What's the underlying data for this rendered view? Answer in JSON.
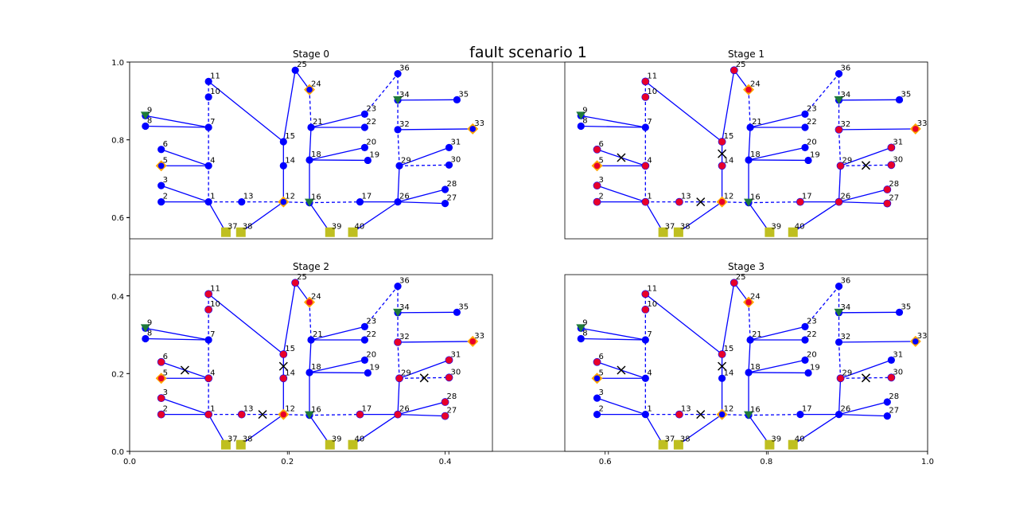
{
  "figure": {
    "title": "fault scenario 1",
    "outer_axis": {
      "type": "axes",
      "xlim": [
        0.0,
        1.0
      ],
      "ylim": [
        0.0,
        1.0
      ],
      "xticks": [
        "0.0",
        "0.2",
        "0.4",
        "0.6",
        "0.8",
        "1.0"
      ],
      "yticks": [
        "0.0",
        "0.2",
        "0.4",
        "0.6",
        "0.8",
        "1.0"
      ]
    }
  },
  "colors": {
    "bus_normal": "#0000ff",
    "bus_faulted": "#e8002a",
    "line": "#0000ff",
    "switch_open": "#0000ff",
    "generator": "#ffa500",
    "substation": "#1f7a3a",
    "load_square": "#bfbf20",
    "fault_marker": "#000000"
  },
  "chart_data": {
    "type": "network-graph",
    "nodes": [
      {
        "id": 1,
        "label": "1",
        "x": 0.1,
        "y": 0.64,
        "kind": "bus"
      },
      {
        "id": 2,
        "label": "2",
        "x": 0.04,
        "y": 0.64,
        "kind": "bus"
      },
      {
        "id": 3,
        "label": "3",
        "x": 0.04,
        "y": 0.682,
        "kind": "bus"
      },
      {
        "id": 4,
        "label": "4",
        "x": 0.1,
        "y": 0.733,
        "kind": "bus"
      },
      {
        "id": 5,
        "label": "5",
        "x": 0.04,
        "y": 0.733,
        "kind": "generator"
      },
      {
        "id": 6,
        "label": "6",
        "x": 0.04,
        "y": 0.775,
        "kind": "bus"
      },
      {
        "id": 7,
        "label": "7",
        "x": 0.1,
        "y": 0.832,
        "kind": "bus"
      },
      {
        "id": 8,
        "label": "8",
        "x": 0.02,
        "y": 0.835,
        "kind": "bus"
      },
      {
        "id": 9,
        "label": "9",
        "x": 0.02,
        "y": 0.862,
        "kind": "substation"
      },
      {
        "id": 10,
        "label": "10",
        "x": 0.1,
        "y": 0.91,
        "kind": "bus"
      },
      {
        "id": 11,
        "label": "11",
        "x": 0.1,
        "y": 0.95,
        "kind": "bus"
      },
      {
        "id": 12,
        "label": "12",
        "x": 0.195,
        "y": 0.64,
        "kind": "generator"
      },
      {
        "id": 13,
        "label": "13",
        "x": 0.142,
        "y": 0.64,
        "kind": "bus"
      },
      {
        "id": 14,
        "label": "14",
        "x": 0.195,
        "y": 0.733,
        "kind": "bus"
      },
      {
        "id": 15,
        "label": "15",
        "x": 0.195,
        "y": 0.795,
        "kind": "bus"
      },
      {
        "id": 16,
        "label": "16",
        "x": 0.228,
        "y": 0.638,
        "kind": "substation"
      },
      {
        "id": 17,
        "label": "17",
        "x": 0.292,
        "y": 0.64,
        "kind": "bus"
      },
      {
        "id": 18,
        "label": "18",
        "x": 0.228,
        "y": 0.748,
        "kind": "bus"
      },
      {
        "id": 19,
        "label": "19",
        "x": 0.302,
        "y": 0.747,
        "kind": "bus"
      },
      {
        "id": 20,
        "label": "20",
        "x": 0.298,
        "y": 0.78,
        "kind": "bus"
      },
      {
        "id": 21,
        "label": "21",
        "x": 0.23,
        "y": 0.832,
        "kind": "bus"
      },
      {
        "id": 22,
        "label": "22",
        "x": 0.298,
        "y": 0.832,
        "kind": "bus"
      },
      {
        "id": 23,
        "label": "23",
        "x": 0.298,
        "y": 0.866,
        "kind": "bus"
      },
      {
        "id": 24,
        "label": "24",
        "x": 0.228,
        "y": 0.929,
        "kind": "generator"
      },
      {
        "id": 25,
        "label": "25",
        "x": 0.21,
        "y": 0.979,
        "kind": "bus"
      },
      {
        "id": 26,
        "label": "26",
        "x": 0.34,
        "y": 0.64,
        "kind": "bus"
      },
      {
        "id": 27,
        "label": "27",
        "x": 0.4,
        "y": 0.636,
        "kind": "bus"
      },
      {
        "id": 28,
        "label": "28",
        "x": 0.4,
        "y": 0.672,
        "kind": "bus"
      },
      {
        "id": 29,
        "label": "29",
        "x": 0.342,
        "y": 0.733,
        "kind": "bus"
      },
      {
        "id": 30,
        "label": "30",
        "x": 0.405,
        "y": 0.735,
        "kind": "bus"
      },
      {
        "id": 31,
        "label": "31",
        "x": 0.405,
        "y": 0.78,
        "kind": "bus"
      },
      {
        "id": 32,
        "label": "32",
        "x": 0.34,
        "y": 0.826,
        "kind": "bus"
      },
      {
        "id": 33,
        "label": "33",
        "x": 0.435,
        "y": 0.828,
        "kind": "generator"
      },
      {
        "id": 34,
        "label": "34",
        "x": 0.34,
        "y": 0.902,
        "kind": "substation"
      },
      {
        "id": 35,
        "label": "35",
        "x": 0.415,
        "y": 0.903,
        "kind": "bus"
      },
      {
        "id": 36,
        "label": "36",
        "x": 0.34,
        "y": 0.97,
        "kind": "bus"
      },
      {
        "id": 37,
        "label": "37",
        "x": 0.122,
        "y": 0.562,
        "kind": "load"
      },
      {
        "id": 38,
        "label": "38",
        "x": 0.141,
        "y": 0.562,
        "kind": "load"
      },
      {
        "id": 39,
        "label": "39",
        "x": 0.254,
        "y": 0.562,
        "kind": "load"
      },
      {
        "id": 40,
        "label": "40",
        "x": 0.283,
        "y": 0.562,
        "kind": "load"
      }
    ],
    "lines": [
      {
        "from": 2,
        "to": 1,
        "style": "solid"
      },
      {
        "from": 3,
        "to": 1,
        "style": "solid"
      },
      {
        "from": 1,
        "to": 4,
        "style": "dashed"
      },
      {
        "from": 5,
        "to": 4,
        "style": "solid"
      },
      {
        "from": 6,
        "to": 4,
        "style": "solid"
      },
      {
        "from": 4,
        "to": 7,
        "style": "dashed"
      },
      {
        "from": 8,
        "to": 7,
        "style": "solid"
      },
      {
        "from": 9,
        "to": 7,
        "style": "solid"
      },
      {
        "from": 7,
        "to": 10,
        "style": "dashed"
      },
      {
        "from": 10,
        "to": 11,
        "style": "dashed"
      },
      {
        "from": 11,
        "to": 15,
        "style": "solid"
      },
      {
        "from": 1,
        "to": 13,
        "style": "dashed"
      },
      {
        "from": 13,
        "to": 12,
        "style": "dashed"
      },
      {
        "from": 12,
        "to": 14,
        "style": "solid"
      },
      {
        "from": 14,
        "to": 15,
        "style": "solid"
      },
      {
        "from": 15,
        "to": 25,
        "style": "solid"
      },
      {
        "from": 25,
        "to": 24,
        "style": "solid"
      },
      {
        "from": 24,
        "to": 21,
        "style": "dashed"
      },
      {
        "from": 12,
        "to": 16,
        "style": "dashed"
      },
      {
        "from": 16,
        "to": 17,
        "style": "dashed"
      },
      {
        "from": 17,
        "to": 26,
        "style": "solid"
      },
      {
        "from": 16,
        "to": 18,
        "style": "solid"
      },
      {
        "from": 18,
        "to": 21,
        "style": "solid"
      },
      {
        "from": 18,
        "to": 19,
        "style": "solid"
      },
      {
        "from": 18,
        "to": 20,
        "style": "solid"
      },
      {
        "from": 21,
        "to": 22,
        "style": "solid"
      },
      {
        "from": 21,
        "to": 23,
        "style": "solid"
      },
      {
        "from": 23,
        "to": 36,
        "style": "dashed"
      },
      {
        "from": 26,
        "to": 27,
        "style": "solid"
      },
      {
        "from": 26,
        "to": 28,
        "style": "solid"
      },
      {
        "from": 26,
        "to": 29,
        "style": "solid"
      },
      {
        "from": 29,
        "to": 30,
        "style": "dashed"
      },
      {
        "from": 29,
        "to": 31,
        "style": "solid"
      },
      {
        "from": 29,
        "to": 32,
        "style": "dashed"
      },
      {
        "from": 32,
        "to": 33,
        "style": "solid"
      },
      {
        "from": 32,
        "to": 34,
        "style": "dashed"
      },
      {
        "from": 34,
        "to": 35,
        "style": "solid"
      },
      {
        "from": 34,
        "to": 36,
        "style": "dashed"
      },
      {
        "from": 1,
        "to": 37,
        "style": "solid"
      },
      {
        "from": 12,
        "to": 38,
        "style": "solid"
      },
      {
        "from": 16,
        "to": 39,
        "style": "solid"
      },
      {
        "from": 26,
        "to": 40,
        "style": "solid"
      }
    ],
    "panels": [
      {
        "title": "Stage 0",
        "xlim": [
          0.0,
          0.46
        ],
        "ylim": [
          0.545,
          1.0
        ],
        "yticks": [
          "0.6",
          "0.8",
          "1.0"
        ],
        "xticks": [],
        "faulted_buses": [],
        "open_switches": []
      },
      {
        "title": "Stage 1",
        "xlim": [
          0.55,
          1.0
        ],
        "ylim": [
          0.545,
          1.0
        ],
        "yticks": [],
        "xticks": [],
        "faulted_buses": [
          2,
          3,
          4,
          5,
          6,
          10,
          11,
          13,
          14,
          15,
          17,
          24,
          25,
          26,
          27,
          28,
          29,
          30,
          31,
          32,
          33,
          1,
          12
        ],
        "open_switches": [
          [
            6,
            4
          ],
          [
            13,
            12
          ],
          [
            14,
            15
          ],
          [
            29,
            30
          ]
        ]
      },
      {
        "title": "Stage 2",
        "xlim": [
          0.0,
          0.46
        ],
        "ylim": [
          0.0,
          0.455
        ],
        "yticks": [
          "0.0",
          "0.2",
          "0.4"
        ],
        "xticks": [
          "0.0",
          "0.2",
          "0.4"
        ],
        "faulted_buses": [
          1,
          2,
          3,
          4,
          5,
          6,
          10,
          11,
          12,
          13,
          14,
          15,
          17,
          24,
          25,
          26,
          27,
          28,
          29,
          30,
          31,
          32,
          33
        ],
        "open_switches": [
          [
            6,
            4
          ],
          [
            13,
            12
          ],
          [
            14,
            15
          ],
          [
            29,
            30
          ]
        ]
      },
      {
        "title": "Stage 3",
        "xlim": [
          0.55,
          1.0
        ],
        "ylim": [
          0.0,
          0.455
        ],
        "yticks": [],
        "xticks": [
          "0.6",
          "0.8",
          "1.0"
        ],
        "faulted_buses": [
          6,
          10,
          11,
          13,
          15,
          24,
          25,
          29,
          30
        ],
        "open_switches": [
          [
            6,
            4
          ],
          [
            13,
            12
          ],
          [
            14,
            15
          ],
          [
            29,
            30
          ]
        ]
      }
    ]
  }
}
